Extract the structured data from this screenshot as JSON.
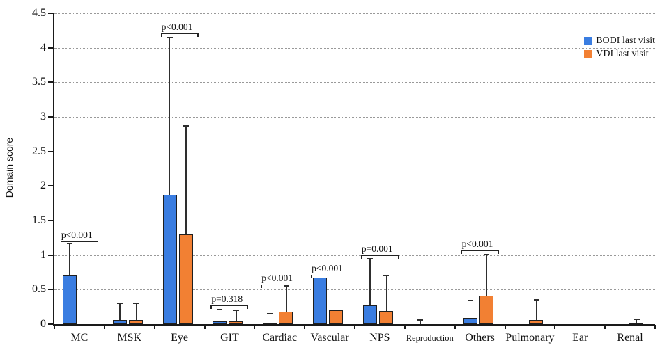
{
  "chart_data": {
    "type": "bar",
    "title": "",
    "ylabel": "Domain score",
    "ylim": [
      0,
      4.5
    ],
    "ytick_step": 0.5,
    "ytick_labels": [
      "0",
      "0.5",
      "1",
      "1.5",
      "2",
      "2.5",
      "3",
      "3.5",
      "4",
      "4.5"
    ],
    "grid": "dotted-horizontal",
    "categories": [
      "MC",
      "MSK",
      "Eye",
      "GIT",
      "Cardiac",
      "Vascular",
      "NPS",
      "Reproduction",
      "Others",
      "Pulmonary",
      "Ear",
      "Renal"
    ],
    "series": [
      {
        "name": "BODI last visit",
        "short": "bodi",
        "color": "#3A7DE1",
        "values": [
          0.7,
          0.06,
          1.87,
          0.04,
          0.02,
          0.67,
          0.27,
          0,
          0.09,
          0,
          0,
          0
        ],
        "error_top": [
          1.17,
          0.3,
          4.15,
          0.21,
          0.15,
          null,
          0.95,
          0.06,
          0.34,
          null,
          null,
          null
        ]
      },
      {
        "name": "VDI last visit",
        "short": "vdi",
        "color": "#F28033",
        "values": [
          0,
          0.06,
          1.3,
          0.04,
          0.18,
          0.2,
          0.19,
          0,
          0.41,
          0.06,
          0,
          0.02
        ],
        "error_top": [
          null,
          0.3,
          2.87,
          0.2,
          0.55,
          null,
          0.7,
          null,
          1.01,
          0.35,
          null,
          0.07
        ]
      }
    ],
    "annotations": [
      {
        "label": "p<0.001",
        "category": "MC",
        "y": 1.2
      },
      {
        "label": "p<0.001",
        "category": "Eye",
        "y": 4.21
      },
      {
        "label": "p=0.318",
        "category": "GIT",
        "y": 0.27
      },
      {
        "label": "p<0.001",
        "category": "Cardiac",
        "y": 0.57
      },
      {
        "label": "p<0.001",
        "category": "Vascular",
        "y": 0.71
      },
      {
        "label": "p=0.001",
        "category": "NPS",
        "y": 1.0
      },
      {
        "label": "p<0.001",
        "category": "Others",
        "y": 1.07
      }
    ],
    "legend": {
      "position": "top-right"
    }
  }
}
